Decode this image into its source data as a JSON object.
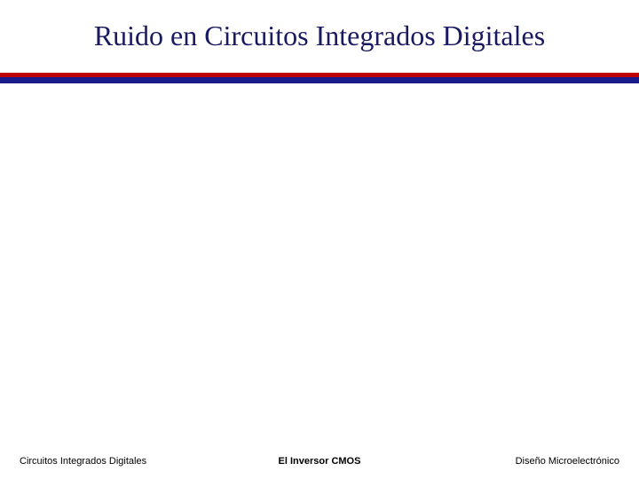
{
  "slide": {
    "title": "Ruido en Circuitos Integrados Digitales",
    "divider": {
      "top_color": "#c00000",
      "bottom_color": "#1a1a8a"
    },
    "footer": {
      "left": "Circuitos Integrados Digitales",
      "center": "El Inversor CMOS",
      "right": "Diseño Microelectrónico"
    },
    "title_color": "#1a1a60",
    "background_color": "#ffffff",
    "title_fontsize": 32,
    "footer_fontsize": 11
  }
}
